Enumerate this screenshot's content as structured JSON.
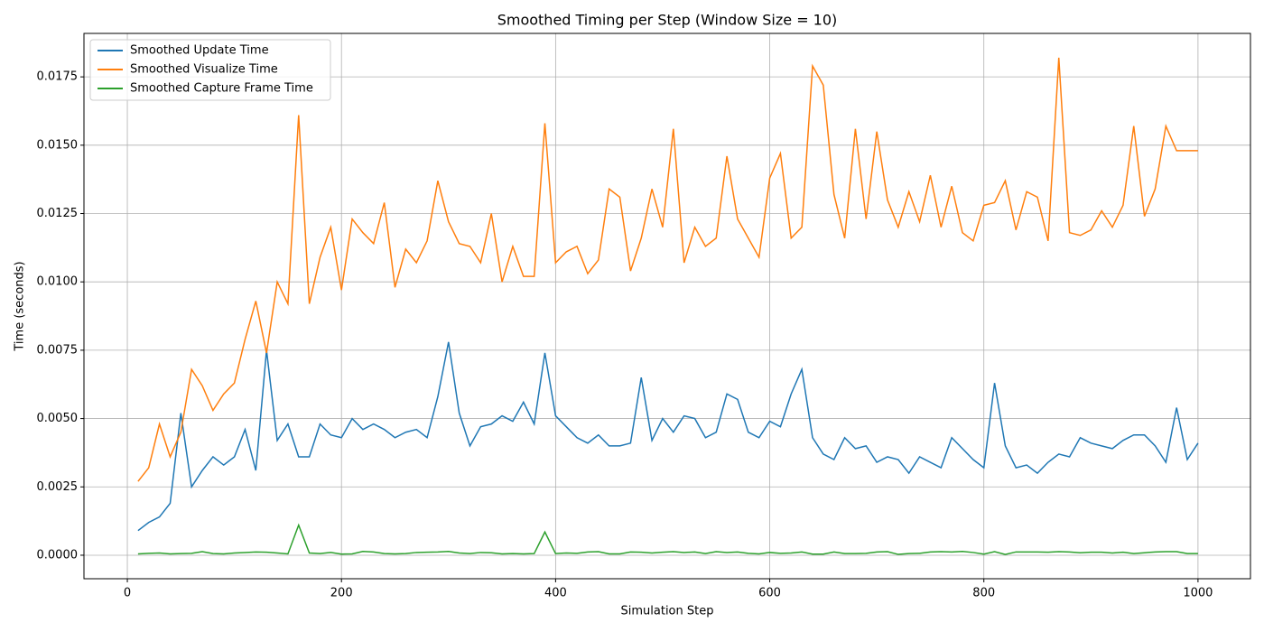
{
  "chart_data": {
    "type": "line",
    "title": "Smoothed Timing per Step (Window Size = 10)",
    "x_label": "Simulation Step",
    "y_label": "Time (seconds)",
    "x": [
      10,
      20,
      30,
      40,
      50,
      60,
      70,
      80,
      90,
      100,
      110,
      120,
      130,
      140,
      150,
      160,
      170,
      180,
      190,
      200,
      210,
      220,
      230,
      240,
      250,
      260,
      270,
      280,
      290,
      300,
      310,
      320,
      330,
      340,
      350,
      360,
      370,
      380,
      390,
      400,
      410,
      420,
      430,
      440,
      450,
      460,
      470,
      480,
      490,
      500,
      510,
      520,
      530,
      540,
      550,
      560,
      570,
      580,
      590,
      600,
      610,
      620,
      630,
      640,
      650,
      660,
      670,
      680,
      690,
      700,
      710,
      720,
      730,
      740,
      750,
      760,
      770,
      780,
      790,
      800,
      810,
      820,
      830,
      840,
      850,
      860,
      870,
      880,
      890,
      900,
      910,
      920,
      930,
      940,
      950,
      960,
      970,
      980,
      990,
      1000
    ],
    "series": [
      {
        "name": "Smoothed Update Time",
        "color": "#1f77b4",
        "values": [
          0.0009,
          0.0012,
          0.0014,
          0.0019,
          0.0052,
          0.0025,
          0.0031,
          0.0036,
          0.0033,
          0.0036,
          0.0046,
          0.0031,
          0.0075,
          0.0042,
          0.0048,
          0.0036,
          0.0036,
          0.0048,
          0.0044,
          0.0043,
          0.005,
          0.0046,
          0.0048,
          0.0046,
          0.0043,
          0.0045,
          0.0046,
          0.0043,
          0.0058,
          0.0078,
          0.0052,
          0.004,
          0.0047,
          0.0048,
          0.0051,
          0.0049,
          0.0056,
          0.0048,
          0.0074,
          0.0051,
          0.0047,
          0.0043,
          0.0041,
          0.0044,
          0.004,
          0.004,
          0.0041,
          0.0065,
          0.0042,
          0.005,
          0.0045,
          0.0051,
          0.005,
          0.0043,
          0.0045,
          0.0059,
          0.0057,
          0.0045,
          0.0043,
          0.0049,
          0.0047,
          0.0059,
          0.0068,
          0.0043,
          0.0037,
          0.0035,
          0.0043,
          0.0039,
          0.004,
          0.0034,
          0.0036,
          0.0035,
          0.003,
          0.0036,
          0.0034,
          0.0032,
          0.0043,
          0.0039,
          0.0035,
          0.0032,
          0.0063,
          0.004,
          0.0032,
          0.0033,
          0.003,
          0.0034,
          0.0037,
          0.0036,
          0.0043,
          0.0041,
          0.004,
          0.0039,
          0.0042,
          0.0044,
          0.0044,
          0.004,
          0.0034,
          0.0054,
          0.0035,
          0.0041
        ]
      },
      {
        "name": "Smoothed Visualize Time",
        "color": "#ff7f0e",
        "values": [
          0.0027,
          0.0032,
          0.0048,
          0.0036,
          0.0045,
          0.0068,
          0.0062,
          0.0053,
          0.0059,
          0.0063,
          0.0079,
          0.0093,
          0.0074,
          0.01,
          0.0092,
          0.0161,
          0.0092,
          0.0109,
          0.012,
          0.0097,
          0.0123,
          0.0118,
          0.0114,
          0.0129,
          0.0098,
          0.0112,
          0.0107,
          0.0115,
          0.0137,
          0.0122,
          0.0114,
          0.0113,
          0.0107,
          0.0125,
          0.01,
          0.0113,
          0.0102,
          0.0102,
          0.0158,
          0.0107,
          0.0111,
          0.0113,
          0.0103,
          0.0108,
          0.0134,
          0.0131,
          0.0104,
          0.0116,
          0.0134,
          0.012,
          0.0156,
          0.0107,
          0.012,
          0.0113,
          0.0116,
          0.0146,
          0.0123,
          0.0116,
          0.0109,
          0.0138,
          0.0147,
          0.0116,
          0.012,
          0.0179,
          0.0172,
          0.0132,
          0.0116,
          0.0156,
          0.0123,
          0.0155,
          0.013,
          0.012,
          0.0133,
          0.0122,
          0.0139,
          0.012,
          0.0135,
          0.0118,
          0.0115,
          0.0128,
          0.0129,
          0.0137,
          0.0119,
          0.0133,
          0.0131,
          0.0115,
          0.0182,
          0.0118,
          0.0117,
          0.0119,
          0.0126,
          0.012,
          0.0128,
          0.0157,
          0.0124,
          0.0134,
          0.0157,
          0.0148,
          0.0148,
          0.0148
        ]
      },
      {
        "name": "Smoothed Capture Frame Time",
        "color": "#2ca02c",
        "values": [
          5e-05,
          7e-05,
          8e-05,
          5e-05,
          6e-05,
          7e-05,
          0.00013,
          6e-05,
          5e-05,
          8e-05,
          0.0001,
          0.00012,
          0.00011,
          8e-05,
          5e-05,
          0.0011,
          8e-05,
          6e-05,
          0.0001,
          4e-05,
          5e-05,
          0.00014,
          0.00012,
          6e-05,
          5e-05,
          6e-05,
          0.0001,
          0.00011,
          0.00012,
          0.00014,
          8e-05,
          6e-05,
          0.0001,
          9e-05,
          5e-05,
          6e-05,
          5e-05,
          6e-05,
          0.00085,
          6e-05,
          8e-05,
          7e-05,
          0.00012,
          0.00013,
          5e-05,
          5e-05,
          0.00012,
          0.00011,
          8e-05,
          0.00011,
          0.00013,
          0.0001,
          0.00012,
          6e-05,
          0.00013,
          0.0001,
          0.00012,
          7e-05,
          5e-05,
          0.0001,
          7e-05,
          8e-05,
          0.00012,
          4e-05,
          4e-05,
          0.00012,
          6e-05,
          6e-05,
          7e-05,
          0.00012,
          0.00013,
          3e-05,
          6e-05,
          7e-05,
          0.00012,
          0.00013,
          0.00012,
          0.00014,
          0.0001,
          4e-05,
          0.00013,
          3e-05,
          0.00012,
          0.00012,
          0.00012,
          0.00011,
          0.00013,
          0.00012,
          9e-05,
          0.00011,
          0.00011,
          8e-05,
          0.00011,
          6e-05,
          9e-05,
          0.00012,
          0.00013,
          0.00013,
          6e-05,
          6e-05
        ]
      }
    ],
    "xlim": [
      -40.5,
      1049
    ],
    "xticks": [
      0,
      200,
      400,
      600,
      800,
      1000
    ],
    "ylim": [
      -0.00086,
      0.01909
    ],
    "yticks": [
      {
        "value": 0,
        "label": "0.0000"
      },
      {
        "value": 0.0025,
        "label": "0.0025"
      },
      {
        "value": 0.005,
        "label": "0.0050"
      },
      {
        "value": 0.0075,
        "label": "0.0075"
      },
      {
        "value": 0.01,
        "label": "0.0100"
      },
      {
        "value": 0.0125,
        "label": "0.0125"
      },
      {
        "value": 0.015,
        "label": "0.0150"
      },
      {
        "value": 0.0175,
        "label": "0.0175"
      }
    ],
    "grid": true,
    "legend": "upper left"
  }
}
